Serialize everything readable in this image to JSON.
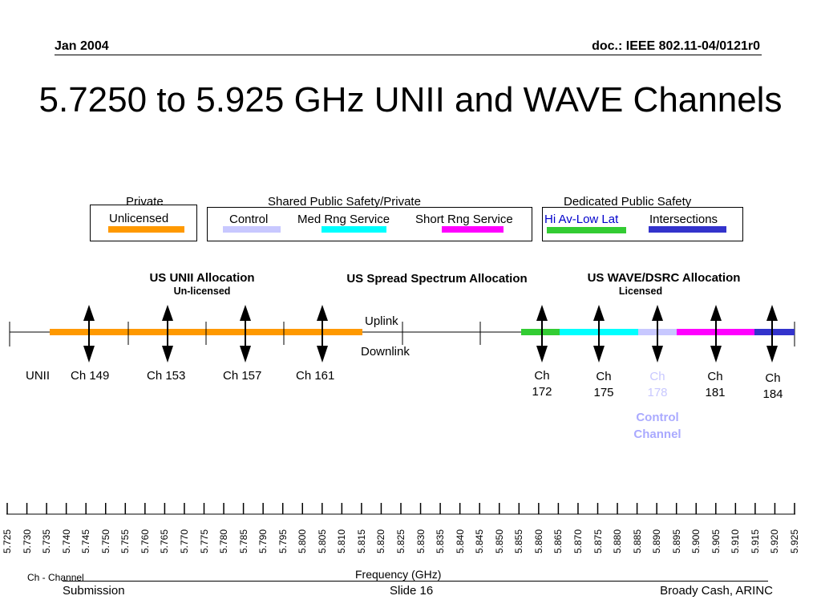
{
  "header": {
    "date": "Jan 2004",
    "doc": "doc.: IEEE 802.11-04/0121r0"
  },
  "title": "5.7250 to 5.925 GHz UNII and WAVE Channels",
  "legend": {
    "private_header": "Private",
    "unlicensed": "Unlicensed",
    "shared_header": "Shared Public Safety/Private",
    "control": "Control",
    "med_rng": "Med Rng Service",
    "short_rng": "Short Rng Service",
    "dedicated_header": "Dedicated Public Safety",
    "hi_av": "Hi Av-Low Lat",
    "intersections": "Intersections",
    "colors": {
      "unlicensed": "#ff9900",
      "control": "#c8c8ff",
      "med_rng": "#00ffff",
      "short_rng": "#ff00ff",
      "hi_av": "#33cc33",
      "intersections": "#3333cc"
    }
  },
  "allocations": {
    "unii": "US UNII Allocation",
    "unii_sub": "Un-licensed",
    "spread": "US Spread Spectrum Allocation",
    "wave": "US WAVE/DSRC Allocation",
    "wave_sub": "Licensed"
  },
  "links": {
    "uplink": "Uplink",
    "downlink": "Downlink"
  },
  "unii_label": "UNII",
  "unii_channels": [
    "Ch 149",
    "Ch 153",
    "Ch 157",
    "Ch 161"
  ],
  "wave_channels": [
    {
      "top": "Ch",
      "num": "172"
    },
    {
      "top": "Ch",
      "num": "175"
    },
    {
      "top": "Ch",
      "num": "178"
    },
    {
      "top": "Ch",
      "num": "181"
    },
    {
      "top": "Ch",
      "num": "184"
    }
  ],
  "control_channel": {
    "line1": "Control",
    "line2": "Channel"
  },
  "frequencies": [
    "5.725",
    "5.730",
    "5.735",
    "5.740",
    "5.745",
    "5.750",
    "5.755",
    "5.760",
    "5.765",
    "5.770",
    "5.775",
    "5.780",
    "5.785",
    "5.790",
    "5.795",
    "5.800",
    "5.805",
    "5.810",
    "5.815",
    "5.820",
    "5.825",
    "5.830",
    "5.835",
    "5.840",
    "5.845",
    "5.850",
    "5.855",
    "5.860",
    "5.865",
    "5.870",
    "5.875",
    "5.880",
    "5.885",
    "5.890",
    "5.895",
    "5.900",
    "5.905",
    "5.910",
    "5.915",
    "5.920",
    "5.925"
  ],
  "axis_label": "Frequency (GHz)",
  "footnote": "Ch - Channel",
  "footer": {
    "left": "Submission",
    "center": "Slide 16",
    "right": "Broady Cash, ARINC"
  }
}
